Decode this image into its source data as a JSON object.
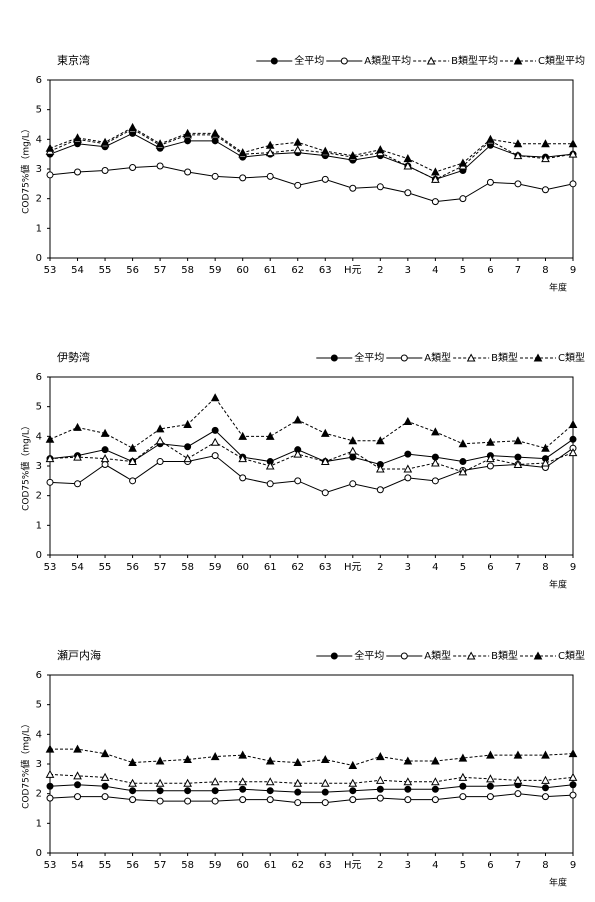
{
  "chart_data": [
    {
      "type": "line",
      "title": "東京湾",
      "ylabel": "COD75%値（mg/L）",
      "xlabel": "年度",
      "categories": [
        "53",
        "54",
        "55",
        "56",
        "57",
        "58",
        "59",
        "60",
        "61",
        "62",
        "63",
        "H元",
        "2",
        "3",
        "4",
        "5",
        "6",
        "7",
        "8",
        "9"
      ],
      "ylim": [
        0,
        6
      ],
      "yticks": [
        0,
        1,
        2,
        3,
        4,
        5,
        6
      ],
      "series": [
        {
          "name": "全平均",
          "color": "#000000",
          "marker": "filled-circle",
          "dashed": false,
          "values": [
            3.5,
            3.85,
            3.75,
            4.2,
            3.7,
            3.95,
            3.95,
            3.4,
            3.5,
            3.55,
            3.45,
            3.3,
            3.45,
            3.1,
            2.65,
            2.95,
            3.8,
            3.45,
            3.4,
            3.5
          ]
        },
        {
          "name": "A類型平均",
          "color": "#000000",
          "marker": "open-circle",
          "dashed": false,
          "values": [
            2.8,
            2.9,
            2.95,
            3.05,
            3.1,
            2.9,
            2.75,
            2.7,
            2.75,
            2.45,
            2.65,
            2.35,
            2.4,
            2.2,
            1.9,
            2.0,
            2.55,
            2.5,
            2.3,
            2.5
          ]
        },
        {
          "name": "B類型平均",
          "color": "#000000",
          "marker": "open-triangle",
          "dashed": true,
          "values": [
            3.6,
            4.0,
            3.85,
            4.35,
            3.8,
            4.15,
            4.15,
            3.5,
            3.55,
            3.65,
            3.55,
            3.4,
            3.55,
            3.1,
            2.65,
            3.1,
            3.95,
            3.45,
            3.35,
            3.5
          ]
        },
        {
          "name": "C類型平均",
          "color": "#000000",
          "marker": "filled-triangle",
          "dashed": true,
          "values": [
            3.7,
            4.05,
            3.9,
            4.4,
            3.85,
            4.2,
            4.2,
            3.55,
            3.8,
            3.9,
            3.6,
            3.45,
            3.65,
            3.35,
            2.9,
            3.2,
            4.0,
            3.85,
            3.85,
            3.85
          ]
        }
      ]
    },
    {
      "type": "line",
      "title": "伊勢湾",
      "ylabel": "COD75%値（mg/L）",
      "xlabel": "年度",
      "categories": [
        "53",
        "54",
        "55",
        "56",
        "57",
        "58",
        "59",
        "60",
        "61",
        "62",
        "63",
        "H元",
        "2",
        "3",
        "4",
        "5",
        "6",
        "7",
        "8",
        "9"
      ],
      "ylim": [
        0,
        6
      ],
      "yticks": [
        0,
        1,
        2,
        3,
        4,
        5,
        6
      ],
      "series": [
        {
          "name": "全平均",
          "color": "#000000",
          "marker": "filled-circle",
          "dashed": false,
          "values": [
            3.25,
            3.35,
            3.55,
            3.15,
            3.75,
            3.65,
            4.2,
            3.3,
            3.15,
            3.55,
            3.15,
            3.3,
            3.05,
            3.4,
            3.3,
            3.15,
            3.35,
            3.3,
            3.25,
            3.9
          ]
        },
        {
          "name": "A類型",
          "color": "#000000",
          "marker": "open-circle",
          "dashed": false,
          "values": [
            2.45,
            2.4,
            3.05,
            2.5,
            3.15,
            3.15,
            3.35,
            2.6,
            2.4,
            2.5,
            2.1,
            2.4,
            2.2,
            2.6,
            2.5,
            2.85,
            3.0,
            3.05,
            2.95,
            3.6
          ]
        },
        {
          "name": "B類型",
          "color": "#000000",
          "marker": "open-triangle",
          "dashed": true,
          "values": [
            3.25,
            3.3,
            3.25,
            3.15,
            3.85,
            3.25,
            3.8,
            3.25,
            3.0,
            3.4,
            3.15,
            3.5,
            2.9,
            2.9,
            3.1,
            2.8,
            3.25,
            3.05,
            3.1,
            3.45
          ]
        },
        {
          "name": "C類型",
          "color": "#000000",
          "marker": "filled-triangle",
          "dashed": true,
          "values": [
            3.9,
            4.3,
            4.1,
            3.6,
            4.25,
            4.4,
            5.3,
            4.0,
            4.0,
            4.55,
            4.1,
            3.85,
            3.85,
            4.5,
            4.15,
            3.75,
            3.8,
            3.85,
            3.6,
            4.4
          ]
        }
      ]
    },
    {
      "type": "line",
      "title": "瀬戸内海",
      "ylabel": "COD75%値（mg/L）",
      "xlabel": "年度",
      "categories": [
        "53",
        "54",
        "55",
        "56",
        "57",
        "58",
        "59",
        "60",
        "61",
        "62",
        "63",
        "H元",
        "2",
        "3",
        "4",
        "5",
        "6",
        "7",
        "8",
        "9"
      ],
      "ylim": [
        0,
        6
      ],
      "yticks": [
        0,
        1,
        2,
        3,
        4,
        5,
        6
      ],
      "series": [
        {
          "name": "全平均",
          "color": "#000000",
          "marker": "filled-circle",
          "dashed": false,
          "values": [
            2.25,
            2.3,
            2.25,
            2.1,
            2.1,
            2.1,
            2.1,
            2.15,
            2.1,
            2.05,
            2.05,
            2.1,
            2.15,
            2.15,
            2.15,
            2.25,
            2.25,
            2.3,
            2.2,
            2.3
          ]
        },
        {
          "name": "A類型",
          "color": "#000000",
          "marker": "open-circle",
          "dashed": false,
          "values": [
            1.85,
            1.9,
            1.9,
            1.8,
            1.75,
            1.75,
            1.75,
            1.8,
            1.8,
            1.7,
            1.7,
            1.8,
            1.85,
            1.8,
            1.8,
            1.9,
            1.9,
            2.0,
            1.9,
            1.95
          ]
        },
        {
          "name": "B類型",
          "color": "#000000",
          "marker": "open-triangle",
          "dashed": true,
          "values": [
            2.65,
            2.6,
            2.55,
            2.35,
            2.35,
            2.35,
            2.4,
            2.4,
            2.4,
            2.35,
            2.35,
            2.35,
            2.45,
            2.4,
            2.4,
            2.55,
            2.5,
            2.45,
            2.45,
            2.55
          ]
        },
        {
          "name": "C類型",
          "color": "#000000",
          "marker": "filled-triangle",
          "dashed": true,
          "values": [
            3.5,
            3.5,
            3.35,
            3.05,
            3.1,
            3.15,
            3.25,
            3.3,
            3.1,
            3.05,
            3.15,
            2.95,
            3.25,
            3.1,
            3.1,
            3.2,
            3.3,
            3.3,
            3.3,
            3.35
          ]
        }
      ]
    }
  ]
}
